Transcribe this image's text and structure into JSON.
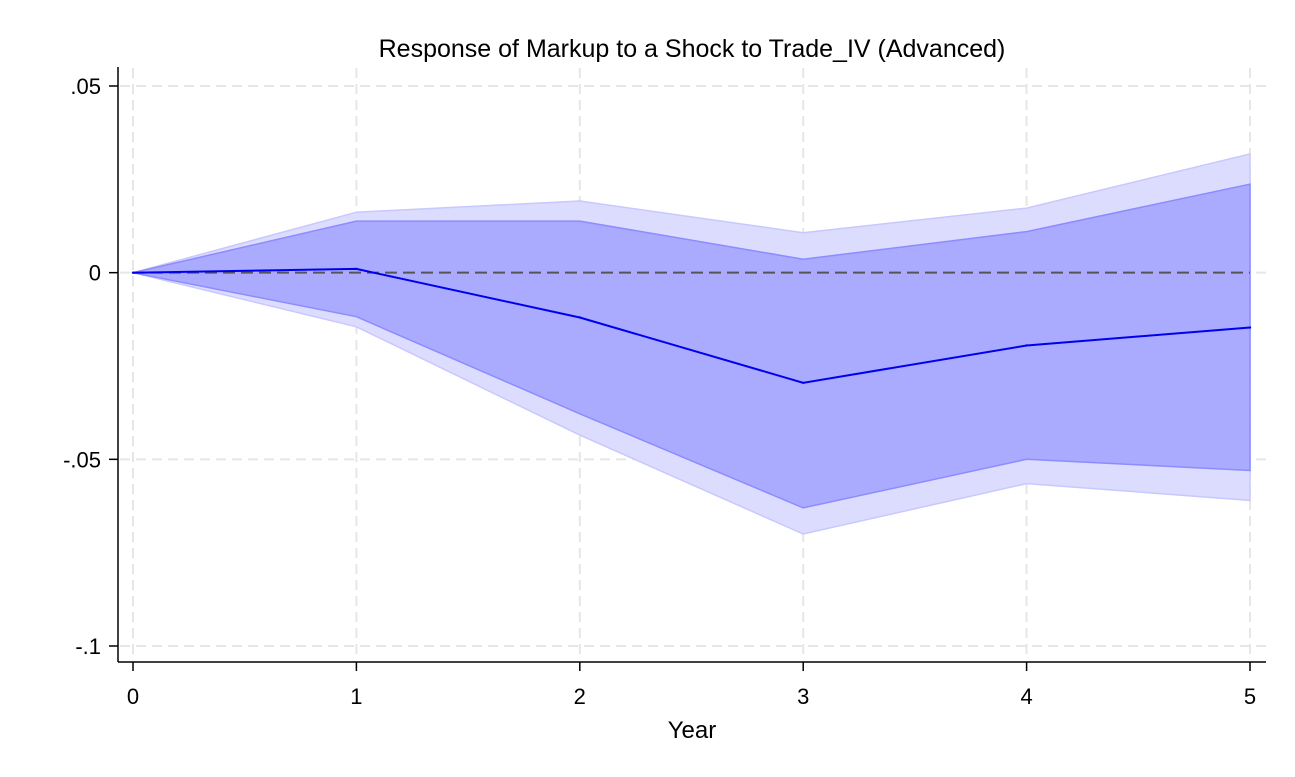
{
  "chart_data": {
    "type": "line",
    "title": "Response of Markup to a Shock to Trade_IV (Advanced)",
    "xlabel": "Year",
    "ylabel": "",
    "x": [
      0,
      1,
      2,
      3,
      4,
      5
    ],
    "xticks": [
      {
        "value": 0,
        "label": "0"
      },
      {
        "value": 1,
        "label": "1"
      },
      {
        "value": 2,
        "label": "2"
      },
      {
        "value": 3,
        "label": "3"
      },
      {
        "value": 4,
        "label": "4"
      },
      {
        "value": 5,
        "label": "5"
      }
    ],
    "yticks": [
      {
        "value": 0.05,
        "label": ".05"
      },
      {
        "value": 0,
        "label": "0"
      },
      {
        "value": -0.05,
        "label": "-.05"
      },
      {
        "value": -0.1,
        "label": "-.1"
      }
    ],
    "xlim": [
      0,
      5
    ],
    "ylim": [
      -0.1,
      0.05
    ],
    "grid": true,
    "reference_line": 0,
    "series": [
      {
        "values": [
          0,
          0.001,
          -0.012,
          -0.0295,
          -0.0195,
          -0.0147
        ]
      }
    ],
    "bands": [
      {
        "level": "outer",
        "lower": [
          0,
          -0.0145,
          -0.0435,
          -0.07,
          -0.0565,
          -0.061
        ],
        "upper": [
          0,
          0.0162,
          0.0192,
          0.0107,
          0.0173,
          0.0318
        ]
      },
      {
        "level": "inner",
        "lower": [
          0,
          -0.0118,
          -0.0378,
          -0.063,
          -0.05,
          -0.053
        ],
        "upper": [
          0,
          0.0138,
          0.0138,
          0.0036,
          0.011,
          0.0237
        ]
      }
    ],
    "colors": {
      "line": "#0000ee",
      "inner_band": "#aaaaff",
      "outer_band": "#dcdcff",
      "reference_line": "#555555",
      "grid": "#e6e6e6"
    }
  }
}
